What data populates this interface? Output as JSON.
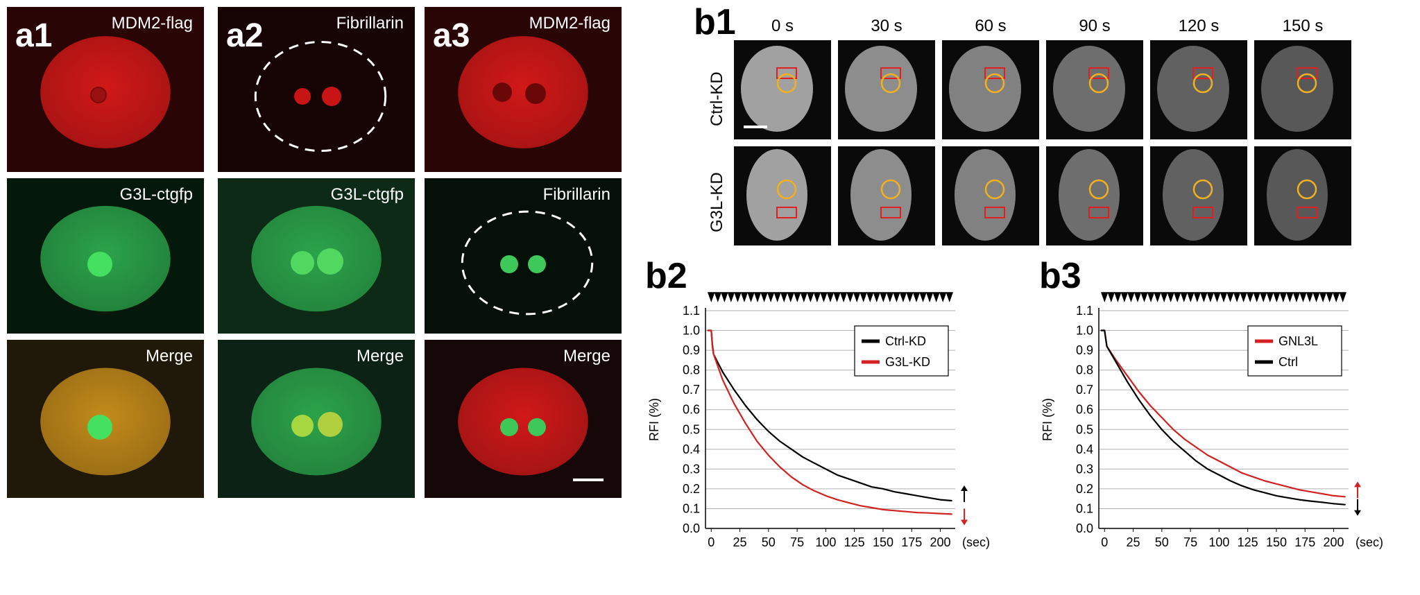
{
  "panel_a": {
    "letters": [
      "a1",
      "a2",
      "a3"
    ],
    "rows": [
      {
        "labels": [
          "MDM2-flag",
          "Fibrillarin",
          "MDM2-flag"
        ]
      },
      {
        "labels": [
          "G3L-ctgfp",
          "G3L-ctgfp",
          "Fibrillarin"
        ]
      },
      {
        "labels": [
          "Merge",
          "Merge",
          "Merge"
        ]
      }
    ]
  },
  "panel_b1": {
    "letter": "b1",
    "times": [
      "0 s",
      "30 s",
      "60 s",
      "90 s",
      "120 s",
      "150 s"
    ],
    "rows": [
      "Ctrl-KD",
      "G3L-KD"
    ]
  },
  "chart_data": [
    {
      "id": "b2",
      "type": "line",
      "panel_label": "b2",
      "ylabel": "RFI (%)",
      "xlabel": "(sec)",
      "xlim": [
        -5,
        213
      ],
      "ylim": [
        0,
        1.1
      ],
      "xticks": [
        0,
        25,
        50,
        75,
        100,
        125,
        150,
        175,
        200
      ],
      "yticks": [
        0,
        0.1,
        0.2,
        0.3,
        0.4,
        0.5,
        0.6,
        0.7,
        0.8,
        0.9,
        1.0,
        1.1
      ],
      "grid": true,
      "legend_position": "top-right",
      "bleach_markers": 37,
      "series": [
        {
          "name": "Ctrl-KD",
          "color": "#000000",
          "x": [
            -3,
            0,
            1,
            2,
            10,
            20,
            30,
            40,
            50,
            60,
            70,
            80,
            90,
            100,
            110,
            120,
            130,
            140,
            150,
            160,
            170,
            180,
            190,
            200,
            210
          ],
          "y": [
            1.0,
            1.0,
            0.93,
            0.88,
            0.79,
            0.7,
            0.62,
            0.55,
            0.49,
            0.44,
            0.4,
            0.36,
            0.33,
            0.3,
            0.27,
            0.25,
            0.23,
            0.21,
            0.2,
            0.185,
            0.175,
            0.165,
            0.155,
            0.145,
            0.14
          ]
        },
        {
          "name": "G3L-KD",
          "color": "#d42020",
          "x": [
            -3,
            0,
            1,
            2,
            10,
            20,
            30,
            40,
            50,
            60,
            70,
            80,
            90,
            100,
            110,
            120,
            130,
            140,
            150,
            160,
            170,
            180,
            190,
            200,
            210
          ],
          "y": [
            1.0,
            1.0,
            0.92,
            0.88,
            0.75,
            0.63,
            0.53,
            0.44,
            0.37,
            0.31,
            0.26,
            0.22,
            0.19,
            0.165,
            0.145,
            0.13,
            0.115,
            0.105,
            0.095,
            0.09,
            0.085,
            0.08,
            0.078,
            0.075,
            0.072
          ]
        }
      ],
      "arrows": [
        {
          "direction": "up",
          "color": "#000000",
          "y": 0.14
        },
        {
          "direction": "down",
          "color": "#d42020",
          "y": 0.072
        }
      ]
    },
    {
      "id": "b3",
      "type": "line",
      "panel_label": "b3",
      "ylabel": "RFI (%)",
      "xlabel": "(sec)",
      "xlim": [
        -5,
        213
      ],
      "ylim": [
        0,
        1.1
      ],
      "xticks": [
        0,
        25,
        50,
        75,
        100,
        125,
        150,
        175,
        200
      ],
      "yticks": [
        0,
        0.1,
        0.2,
        0.3,
        0.4,
        0.5,
        0.6,
        0.7,
        0.8,
        0.9,
        1.0,
        1.1
      ],
      "grid": true,
      "legend_position": "top-right",
      "bleach_markers": 37,
      "series": [
        {
          "name": "GNL3L",
          "color": "#d42020",
          "x": [
            -3,
            0,
            1,
            2,
            10,
            20,
            30,
            40,
            50,
            60,
            70,
            80,
            90,
            100,
            110,
            120,
            130,
            140,
            150,
            160,
            170,
            180,
            190,
            200,
            210
          ],
          "y": [
            1.0,
            1.0,
            0.96,
            0.92,
            0.85,
            0.77,
            0.69,
            0.62,
            0.56,
            0.5,
            0.45,
            0.41,
            0.37,
            0.34,
            0.31,
            0.28,
            0.26,
            0.24,
            0.225,
            0.21,
            0.195,
            0.185,
            0.175,
            0.165,
            0.16
          ]
        },
        {
          "name": "Ctrl",
          "color": "#000000",
          "x": [
            -3,
            0,
            1,
            2,
            10,
            20,
            30,
            40,
            50,
            60,
            70,
            80,
            90,
            100,
            110,
            120,
            130,
            140,
            150,
            160,
            170,
            180,
            190,
            200,
            210
          ],
          "y": [
            1.0,
            1.0,
            0.96,
            0.92,
            0.84,
            0.74,
            0.65,
            0.57,
            0.5,
            0.44,
            0.39,
            0.34,
            0.3,
            0.27,
            0.24,
            0.215,
            0.195,
            0.18,
            0.165,
            0.155,
            0.145,
            0.138,
            0.132,
            0.125,
            0.12
          ]
        }
      ],
      "arrows": [
        {
          "direction": "up",
          "color": "#d42020",
          "y": 0.16
        },
        {
          "direction": "down",
          "color": "#000000",
          "y": 0.12
        }
      ]
    }
  ]
}
